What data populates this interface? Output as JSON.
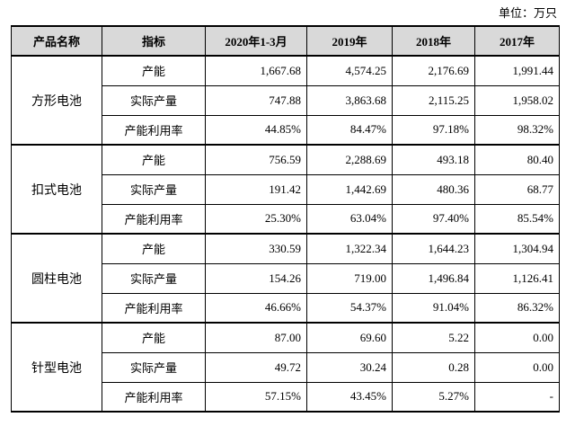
{
  "unit": "单位：万只",
  "table": {
    "header": [
      "产品名称",
      "指标",
      "2020年1-3月",
      "2019年",
      "2018年",
      "2017年"
    ],
    "groups": [
      {
        "name": "方形电池",
        "rows": [
          [
            "产能",
            "1,667.68",
            "4,574.25",
            "2,176.69",
            "1,991.44"
          ],
          [
            "实际产量",
            "747.88",
            "3,863.68",
            "2,115.25",
            "1,958.02"
          ],
          [
            "产能利用率",
            "44.85%",
            "84.47%",
            "97.18%",
            "98.32%"
          ]
        ]
      },
      {
        "name": "扣式电池",
        "rows": [
          [
            "产能",
            "756.59",
            "2,288.69",
            "493.18",
            "80.40"
          ],
          [
            "实际产量",
            "191.42",
            "1,442.69",
            "480.36",
            "68.77"
          ],
          [
            "产能利用率",
            "25.30%",
            "63.04%",
            "97.40%",
            "85.54%"
          ]
        ]
      },
      {
        "name": "圆柱电池",
        "rows": [
          [
            "产能",
            "330.59",
            "1,322.34",
            "1,644.23",
            "1,304.94"
          ],
          [
            "实际产量",
            "154.26",
            "719.00",
            "1,496.84",
            "1,126.41"
          ],
          [
            "产能利用率",
            "46.66%",
            "54.37%",
            "91.04%",
            "86.32%"
          ]
        ]
      },
      {
        "name": "针型电池",
        "rows": [
          [
            "产能",
            "87.00",
            "69.60",
            "5.22",
            "0.00"
          ],
          [
            "实际产量",
            "49.72",
            "30.24",
            "0.28",
            "0.00"
          ],
          [
            "产能利用率",
            "57.15%",
            "43.45%",
            "5.27%",
            "-"
          ]
        ]
      }
    ]
  }
}
